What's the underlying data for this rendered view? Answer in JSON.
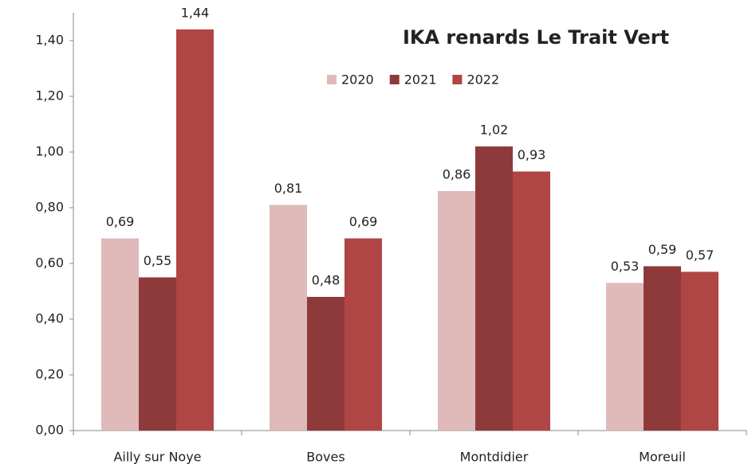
{
  "chart_data": {
    "type": "bar",
    "title": "IKA renards Le Trait Vert",
    "categories": [
      "Ailly sur Noye",
      "Boves",
      "Montdidier",
      "Moreuil"
    ],
    "series": [
      {
        "name": "2020",
        "color": "#e0b9b9",
        "values": [
          0.69,
          0.81,
          0.86,
          0.53
        ],
        "value_labels": [
          "0,69",
          "0,81",
          "0,86",
          "0,53"
        ]
      },
      {
        "name": "2021",
        "color": "#8f3a3a",
        "values": [
          0.55,
          0.48,
          1.02,
          0.59
        ],
        "value_labels": [
          "0,55",
          "0,48",
          "1,02",
          "0,59"
        ]
      },
      {
        "name": "2022",
        "color": "#b04545",
        "values": [
          1.44,
          0.69,
          0.93,
          0.57
        ],
        "value_labels": [
          "1,44",
          "0,69",
          "0,93",
          "0,57"
        ]
      }
    ],
    "ylim": [
      0,
      1.5
    ],
    "yticks": [
      {
        "value": 0,
        "label": "0,00"
      },
      {
        "value": 0.2,
        "label": "0,20"
      },
      {
        "value": 0.4,
        "label": "0,40"
      },
      {
        "value": 0.6,
        "label": "0,60"
      },
      {
        "value": 0.8,
        "label": "0,80"
      },
      {
        "value": 1.0,
        "label": "1,00"
      },
      {
        "value": 1.2,
        "label": "1,20"
      },
      {
        "value": 1.4,
        "label": "1,40"
      }
    ],
    "legend": "top-right"
  }
}
